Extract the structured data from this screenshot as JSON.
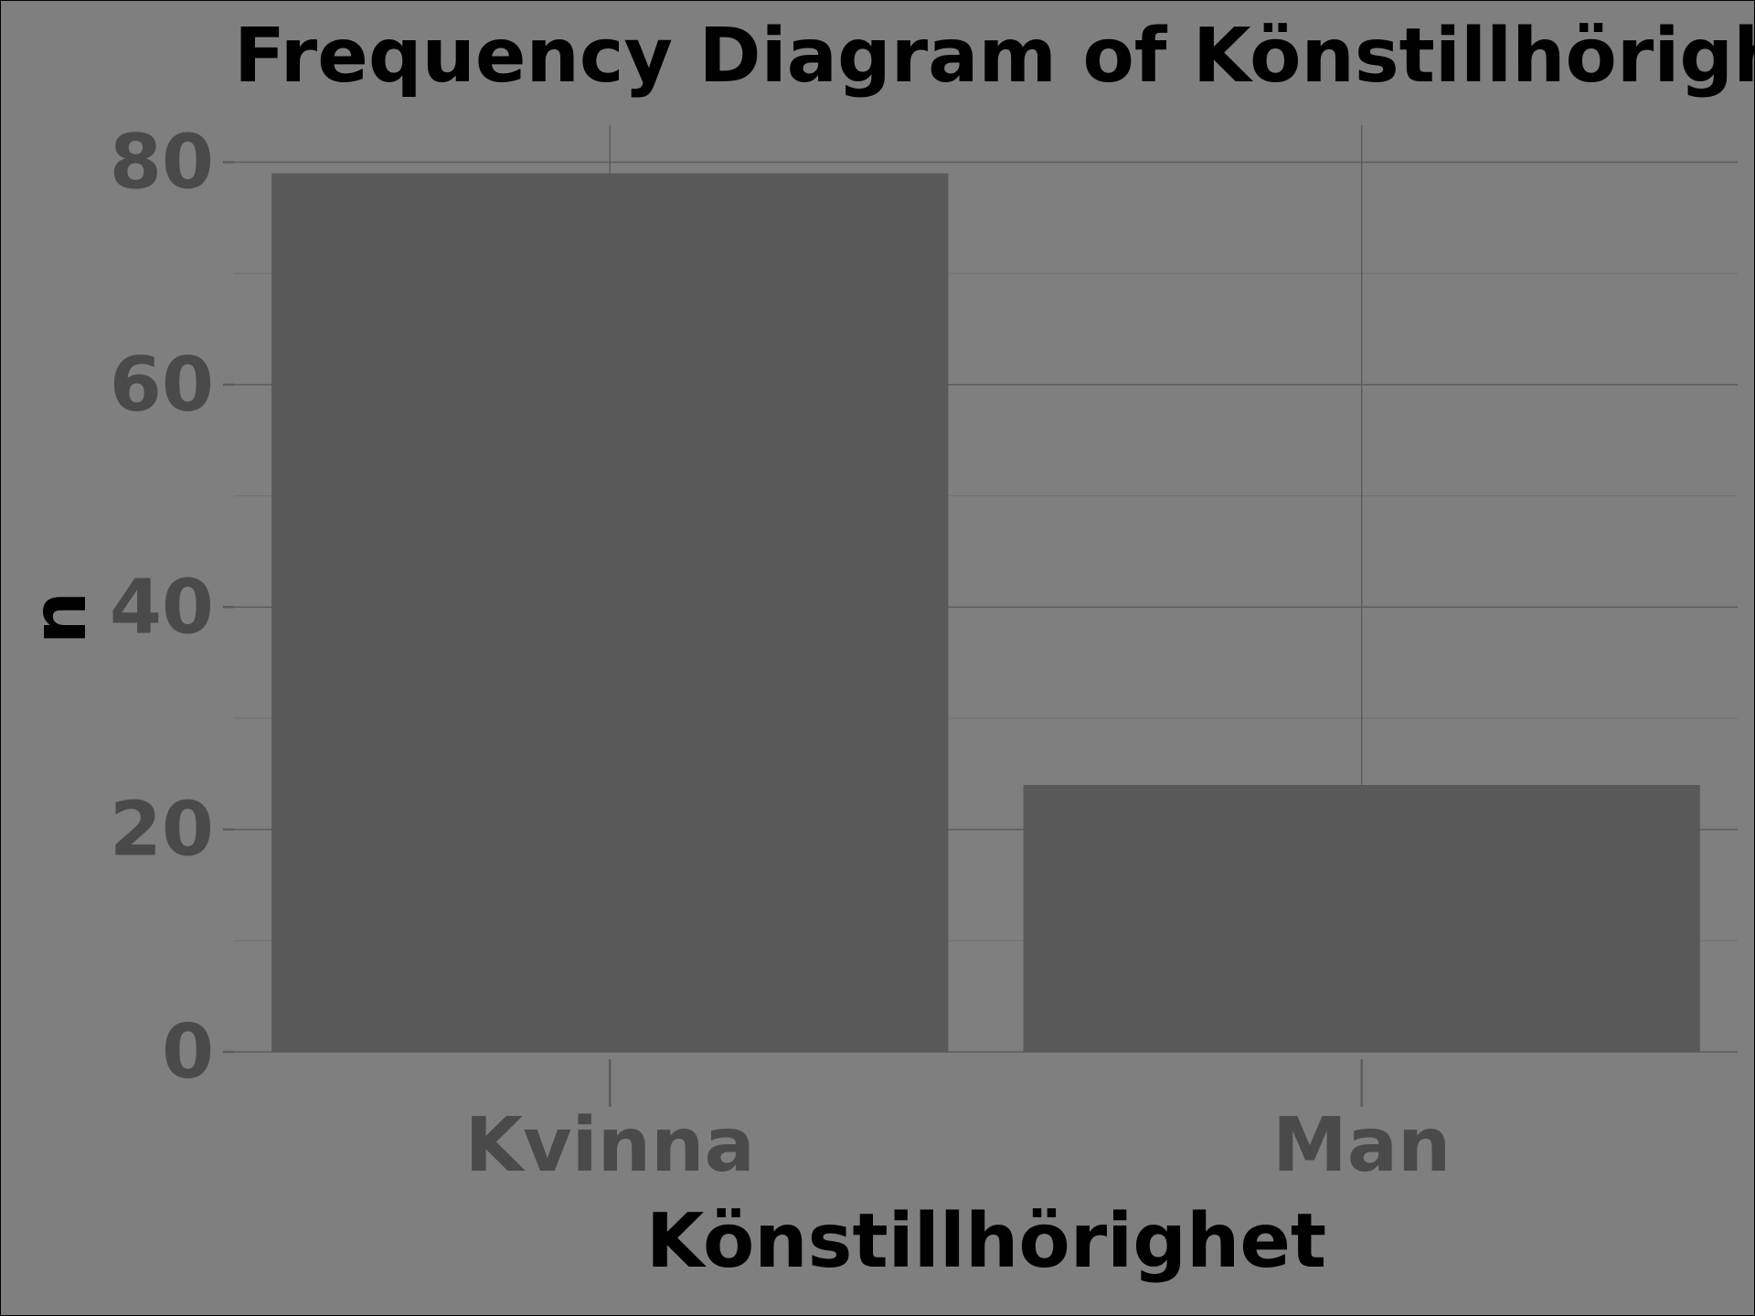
{
  "chart_data": {
    "type": "bar",
    "title": "Frequency Diagram of Könstillhörighet",
    "xlabel": "Könstillhörighet",
    "ylabel": "n",
    "categories": [
      "Kvinna",
      "Man"
    ],
    "values": [
      79,
      24
    ],
    "ylim": [
      0,
      83
    ],
    "yticks": [
      0,
      20,
      40,
      60,
      80
    ],
    "grid": true,
    "colors": {
      "background": "#7f7f7f",
      "bar": "#595959",
      "gridline": "#5c5c5c",
      "tick_label": "#4a4a4a",
      "text": "#000000"
    }
  }
}
